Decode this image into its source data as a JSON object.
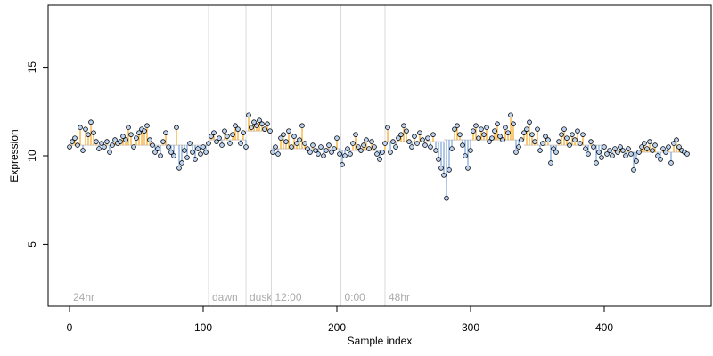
{
  "chart_data": {
    "type": "scatter",
    "title": "",
    "xlabel": "Sample index",
    "ylabel": "Expression",
    "xlim": [
      -16,
      480
    ],
    "ylim": [
      1.5,
      18.5
    ],
    "x_ticks": [
      0,
      100,
      200,
      300,
      400
    ],
    "y_ticks": [
      5,
      10,
      15
    ],
    "grid": false,
    "colors": {
      "above_baseline": "#f5a623",
      "below_baseline": "#7ba3d6",
      "vertical_marker": "#d9d9d9",
      "marker_label": "#aaaaaa",
      "point_fill": "#bcd3f2",
      "point_edge": "#000000"
    },
    "vertical_markers": [
      {
        "x": 0,
        "label": "24hr"
      },
      {
        "x": 104,
        "label": "dawn"
      },
      {
        "x": 132,
        "label": "dusk"
      },
      {
        "x": 151,
        "label": "12:00"
      },
      {
        "x": 203,
        "label": "0:00"
      },
      {
        "x": 236,
        "label": "48hr"
      }
    ],
    "baseline_segments": [
      {
        "x": [
          0,
          104
        ],
        "y": 10.6
      },
      {
        "x": [
          104,
          132
        ],
        "y": 10.9
      },
      {
        "x": [
          132,
          151
        ],
        "y": 11.4
      },
      {
        "x": [
          151,
          203
        ],
        "y": 10.4
      },
      {
        "x": [
          203,
          236
        ],
        "y": 10.3
      },
      {
        "x": [
          236,
          280
        ],
        "y": 10.8
      },
      {
        "x": [
          280,
          340
        ],
        "y": 10.9
      },
      {
        "x": [
          340,
          400
        ],
        "y": 10.6
      },
      {
        "x": [
          400,
          464
        ],
        "y": 10.2
      }
    ],
    "points": [
      [
        0,
        10.5
      ],
      [
        2,
        10.8
      ],
      [
        4,
        11.0
      ],
      [
        6,
        10.6
      ],
      [
        8,
        11.6
      ],
      [
        10,
        10.3
      ],
      [
        12,
        11.5
      ],
      [
        14,
        11.2
      ],
      [
        16,
        11.9
      ],
      [
        18,
        11.3
      ],
      [
        20,
        10.8
      ],
      [
        22,
        10.4
      ],
      [
        24,
        10.7
      ],
      [
        26,
        10.5
      ],
      [
        28,
        10.8
      ],
      [
        30,
        10.2
      ],
      [
        32,
        10.6
      ],
      [
        34,
        10.9
      ],
      [
        36,
        10.7
      ],
      [
        38,
        10.8
      ],
      [
        40,
        11.1
      ],
      [
        42,
        10.9
      ],
      [
        44,
        11.6
      ],
      [
        46,
        11.2
      ],
      [
        48,
        10.5
      ],
      [
        50,
        11.0
      ],
      [
        52,
        11.3
      ],
      [
        54,
        11.5
      ],
      [
        56,
        11.4
      ],
      [
        58,
        11.7
      ],
      [
        60,
        10.9
      ],
      [
        62,
        10.6
      ],
      [
        64,
        10.2
      ],
      [
        66,
        10.4
      ],
      [
        68,
        10.0
      ],
      [
        70,
        10.8
      ],
      [
        72,
        11.3
      ],
      [
        74,
        10.5
      ],
      [
        76,
        10.2
      ],
      [
        78,
        10.0
      ],
      [
        80,
        11.6
      ],
      [
        82,
        9.3
      ],
      [
        84,
        9.6
      ],
      [
        86,
        10.3
      ],
      [
        88,
        9.9
      ],
      [
        90,
        10.7
      ],
      [
        92,
        10.2
      ],
      [
        94,
        9.8
      ],
      [
        96,
        10.4
      ],
      [
        98,
        10.1
      ],
      [
        100,
        10.5
      ],
      [
        102,
        10.2
      ],
      [
        104,
        10.7
      ],
      [
        106,
        11.1
      ],
      [
        108,
        11.3
      ],
      [
        110,
        10.8
      ],
      [
        112,
        11.0
      ],
      [
        114,
        10.6
      ],
      [
        116,
        11.4
      ],
      [
        118,
        11.1
      ],
      [
        120,
        10.7
      ],
      [
        122,
        11.2
      ],
      [
        124,
        11.7
      ],
      [
        126,
        11.5
      ],
      [
        128,
        10.7
      ],
      [
        130,
        11.3
      ],
      [
        132,
        10.5
      ],
      [
        134,
        12.3
      ],
      [
        136,
        11.6
      ],
      [
        138,
        11.9
      ],
      [
        140,
        11.7
      ],
      [
        142,
        12.0
      ],
      [
        144,
        11.8
      ],
      [
        146,
        11.5
      ],
      [
        148,
        11.8
      ],
      [
        150,
        11.4
      ],
      [
        152,
        10.2
      ],
      [
        154,
        10.5
      ],
      [
        156,
        10.1
      ],
      [
        158,
        11.0
      ],
      [
        160,
        11.2
      ],
      [
        162,
        10.8
      ],
      [
        164,
        11.4
      ],
      [
        166,
        10.5
      ],
      [
        168,
        11.1
      ],
      [
        170,
        10.7
      ],
      [
        172,
        10.9
      ],
      [
        174,
        11.7
      ],
      [
        176,
        10.7
      ],
      [
        178,
        10.4
      ],
      [
        180,
        10.2
      ],
      [
        182,
        10.6
      ],
      [
        184,
        10.3
      ],
      [
        186,
        10.1
      ],
      [
        188,
        10.5
      ],
      [
        190,
        10.0
      ],
      [
        192,
        10.3
      ],
      [
        194,
        10.6
      ],
      [
        196,
        10.2
      ],
      [
        198,
        10.4
      ],
      [
        200,
        11.0
      ],
      [
        202,
        10.1
      ],
      [
        204,
        9.5
      ],
      [
        206,
        10.0
      ],
      [
        208,
        10.4
      ],
      [
        210,
        10.1
      ],
      [
        212,
        10.7
      ],
      [
        214,
        11.2
      ],
      [
        216,
        10.5
      ],
      [
        218,
        10.3
      ],
      [
        220,
        10.6
      ],
      [
        222,
        10.9
      ],
      [
        224,
        10.4
      ],
      [
        226,
        10.8
      ],
      [
        228,
        10.5
      ],
      [
        230,
        10.1
      ],
      [
        232,
        9.8
      ],
      [
        234,
        10.2
      ],
      [
        236,
        10.7
      ],
      [
        238,
        11.6
      ],
      [
        240,
        10.2
      ],
      [
        242,
        10.8
      ],
      [
        244,
        10.5
      ],
      [
        246,
        11.0
      ],
      [
        248,
        11.2
      ],
      [
        250,
        11.7
      ],
      [
        252,
        11.4
      ],
      [
        254,
        10.8
      ],
      [
        256,
        10.5
      ],
      [
        258,
        11.1
      ],
      [
        260,
        10.7
      ],
      [
        262,
        11.3
      ],
      [
        264,
        10.9
      ],
      [
        266,
        10.6
      ],
      [
        268,
        11.0
      ],
      [
        270,
        10.5
      ],
      [
        272,
        11.2
      ],
      [
        274,
        10.3
      ],
      [
        276,
        9.8
      ],
      [
        278,
        9.3
      ],
      [
        280,
        8.9
      ],
      [
        282,
        7.6
      ],
      [
        284,
        9.2
      ],
      [
        286,
        10.4
      ],
      [
        288,
        11.5
      ],
      [
        290,
        11.7
      ],
      [
        292,
        11.2
      ],
      [
        294,
        10.6
      ],
      [
        296,
        10.0
      ],
      [
        298,
        9.3
      ],
      [
        300,
        10.3
      ],
      [
        302,
        11.4
      ],
      [
        304,
        11.7
      ],
      [
        306,
        11.0
      ],
      [
        308,
        11.5
      ],
      [
        310,
        11.2
      ],
      [
        312,
        11.6
      ],
      [
        314,
        10.8
      ],
      [
        316,
        11.0
      ],
      [
        318,
        11.4
      ],
      [
        320,
        11.8
      ],
      [
        322,
        11.1
      ],
      [
        324,
        10.9
      ],
      [
        326,
        11.6
      ],
      [
        328,
        11.3
      ],
      [
        330,
        12.3
      ],
      [
        332,
        11.8
      ],
      [
        334,
        10.2
      ],
      [
        336,
        10.5
      ],
      [
        338,
        10.9
      ],
      [
        340,
        11.3
      ],
      [
        342,
        11.5
      ],
      [
        344,
        11.9
      ],
      [
        346,
        11.2
      ],
      [
        348,
        10.8
      ],
      [
        350,
        11.5
      ],
      [
        352,
        10.3
      ],
      [
        354,
        10.7
      ],
      [
        356,
        11.1
      ],
      [
        358,
        10.9
      ],
      [
        360,
        9.6
      ],
      [
        362,
        10.4
      ],
      [
        364,
        10.2
      ],
      [
        366,
        10.8
      ],
      [
        368,
        11.2
      ],
      [
        370,
        11.5
      ],
      [
        372,
        11.0
      ],
      [
        374,
        10.6
      ],
      [
        376,
        11.2
      ],
      [
        378,
        10.9
      ],
      [
        380,
        11.4
      ],
      [
        382,
        10.7
      ],
      [
        384,
        11.2
      ],
      [
        386,
        10.4
      ],
      [
        388,
        10.1
      ],
      [
        390,
        10.8
      ],
      [
        392,
        10.5
      ],
      [
        394,
        9.6
      ],
      [
        396,
        10.2
      ],
      [
        398,
        9.9
      ],
      [
        400,
        10.5
      ],
      [
        402,
        10.1
      ],
      [
        404,
        10.3
      ],
      [
        406,
        10.0
      ],
      [
        408,
        10.4
      ],
      [
        410,
        10.2
      ],
      [
        412,
        10.5
      ],
      [
        414,
        10.3
      ],
      [
        416,
        10.0
      ],
      [
        418,
        10.4
      ],
      [
        420,
        10.1
      ],
      [
        422,
        9.2
      ],
      [
        424,
        9.7
      ],
      [
        426,
        10.2
      ],
      [
        428,
        10.5
      ],
      [
        430,
        10.7
      ],
      [
        432,
        10.4
      ],
      [
        434,
        10.8
      ],
      [
        436,
        10.3
      ],
      [
        438,
        10.6
      ],
      [
        440,
        10.0
      ],
      [
        442,
        9.8
      ],
      [
        444,
        10.4
      ],
      [
        446,
        10.2
      ],
      [
        448,
        10.5
      ],
      [
        450,
        9.6
      ],
      [
        452,
        10.7
      ],
      [
        454,
        10.9
      ],
      [
        456,
        10.5
      ],
      [
        458,
        10.3
      ],
      [
        460,
        10.2
      ],
      [
        462,
        10.1
      ]
    ]
  }
}
